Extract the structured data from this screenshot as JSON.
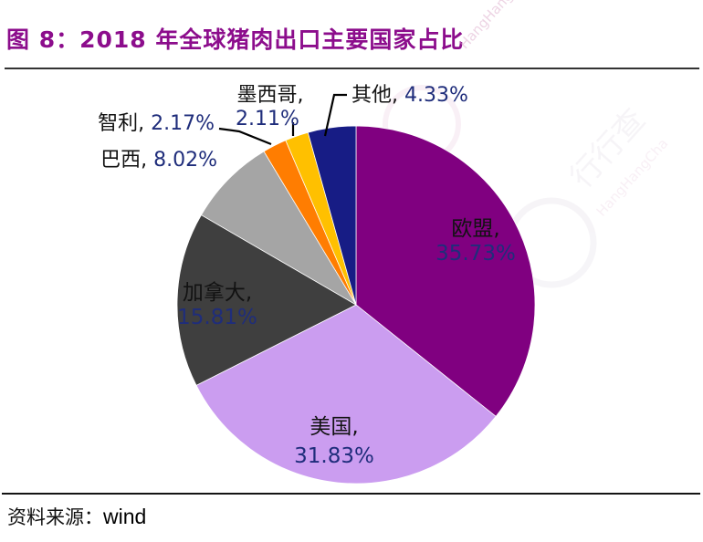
{
  "figure": {
    "title": "图 8：2018 年全球猪肉出口主要国家占比",
    "source_prefix": "资料来源：",
    "source_name": "wind"
  },
  "watermark": {
    "cn": "行行查",
    "en": "HangHangCha"
  },
  "chart_data": {
    "type": "pie",
    "title": "2018 年全球猪肉出口主要国家占比",
    "unit": "%",
    "direction": "clockwise",
    "start_angle_deg": 0,
    "legend_position": "none",
    "label_name_color": "#121212",
    "label_value_color": "#1F2D7B",
    "slices": [
      {
        "id": "eu",
        "label": "欧盟",
        "value": 35.73,
        "color": "#800080",
        "label_placement": "inside"
      },
      {
        "id": "usa",
        "label": "美国",
        "value": 31.83,
        "color": "#CB9DF0",
        "label_placement": "inside"
      },
      {
        "id": "canada",
        "label": "加拿大",
        "value": 15.81,
        "color": "#3F3F3F",
        "label_placement": "inside"
      },
      {
        "id": "brazil",
        "label": "巴西",
        "value": 8.02,
        "color": "#A5A5A5",
        "label_placement": "outside"
      },
      {
        "id": "chile",
        "label": "智利",
        "value": 2.17,
        "color": "#FF7D01",
        "label_placement": "outside"
      },
      {
        "id": "mexico",
        "label": "墨西哥",
        "value": 2.11,
        "color": "#FFC000",
        "label_placement": "outside"
      },
      {
        "id": "others",
        "label": "其他",
        "value": 4.33,
        "color": "#171C85",
        "label_placement": "outside"
      }
    ]
  }
}
